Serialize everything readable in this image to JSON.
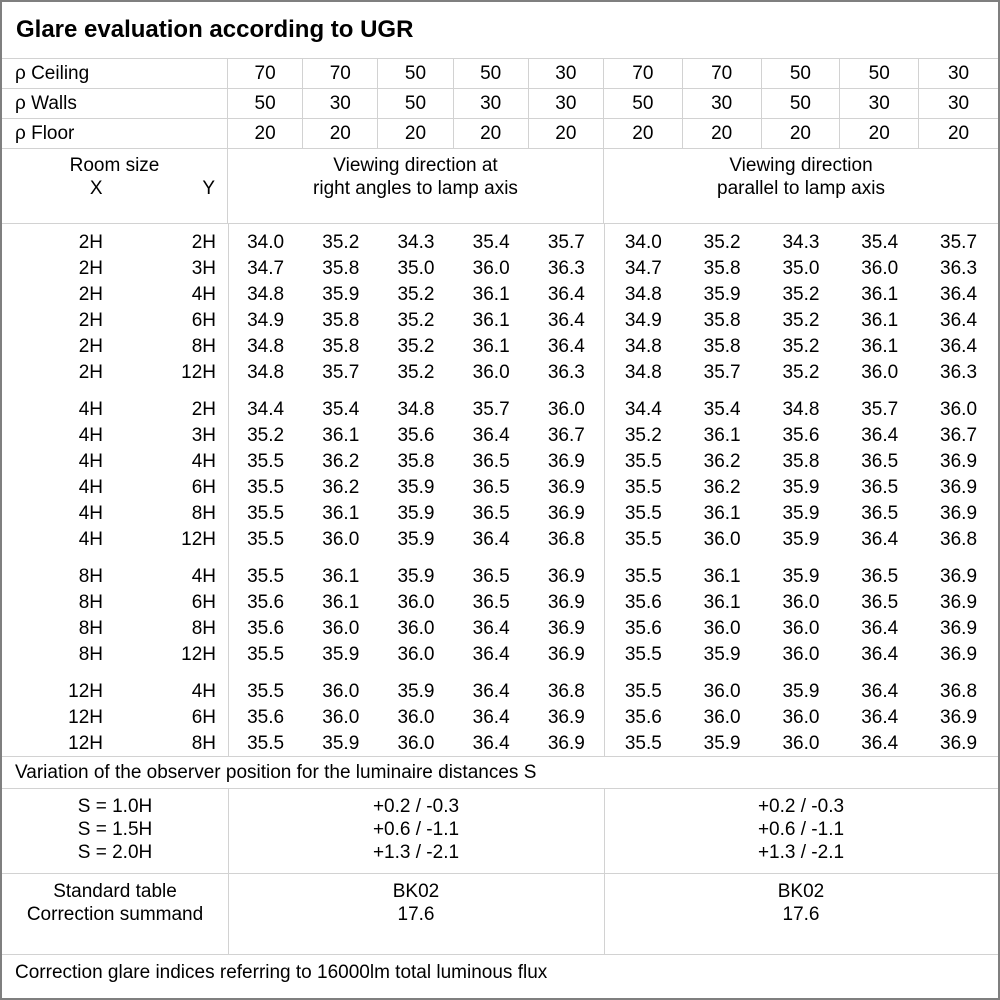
{
  "title": "Glare evaluation according to UGR",
  "reflectances": {
    "rows": [
      {
        "label": "ρ Ceiling",
        "values": [
          "70",
          "70",
          "50",
          "50",
          "30",
          "70",
          "70",
          "50",
          "50",
          "30"
        ]
      },
      {
        "label": "ρ Walls",
        "values": [
          "50",
          "30",
          "50",
          "30",
          "30",
          "50",
          "30",
          "50",
          "30",
          "30"
        ]
      },
      {
        "label": "ρ Floor",
        "values": [
          "20",
          "20",
          "20",
          "20",
          "20",
          "20",
          "20",
          "20",
          "20",
          "20"
        ]
      }
    ]
  },
  "header": {
    "room_size": "Room size",
    "x": "X",
    "y": "Y",
    "group1_line1": "Viewing direction at",
    "group1_line2": "right angles to lamp axis",
    "group2_line1": "Viewing direction",
    "group2_line2": "parallel to lamp axis"
  },
  "ugr_blocks": [
    {
      "rows": [
        {
          "x": "2H",
          "y": "2H",
          "right_angles": [
            "34.0",
            "35.2",
            "34.3",
            "35.4",
            "35.7"
          ],
          "parallel": [
            "34.0",
            "35.2",
            "34.3",
            "35.4",
            "35.7"
          ]
        },
        {
          "x": "2H",
          "y": "3H",
          "right_angles": [
            "34.7",
            "35.8",
            "35.0",
            "36.0",
            "36.3"
          ],
          "parallel": [
            "34.7",
            "35.8",
            "35.0",
            "36.0",
            "36.3"
          ]
        },
        {
          "x": "2H",
          "y": "4H",
          "right_angles": [
            "34.8",
            "35.9",
            "35.2",
            "36.1",
            "36.4"
          ],
          "parallel": [
            "34.8",
            "35.9",
            "35.2",
            "36.1",
            "36.4"
          ]
        },
        {
          "x": "2H",
          "y": "6H",
          "right_angles": [
            "34.9",
            "35.8",
            "35.2",
            "36.1",
            "36.4"
          ],
          "parallel": [
            "34.9",
            "35.8",
            "35.2",
            "36.1",
            "36.4"
          ]
        },
        {
          "x": "2H",
          "y": "8H",
          "right_angles": [
            "34.8",
            "35.8",
            "35.2",
            "36.1",
            "36.4"
          ],
          "parallel": [
            "34.8",
            "35.8",
            "35.2",
            "36.1",
            "36.4"
          ]
        },
        {
          "x": "2H",
          "y": "12H",
          "right_angles": [
            "34.8",
            "35.7",
            "35.2",
            "36.0",
            "36.3"
          ],
          "parallel": [
            "34.8",
            "35.7",
            "35.2",
            "36.0",
            "36.3"
          ]
        }
      ]
    },
    {
      "rows": [
        {
          "x": "4H",
          "y": "2H",
          "right_angles": [
            "34.4",
            "35.4",
            "34.8",
            "35.7",
            "36.0"
          ],
          "parallel": [
            "34.4",
            "35.4",
            "34.8",
            "35.7",
            "36.0"
          ]
        },
        {
          "x": "4H",
          "y": "3H",
          "right_angles": [
            "35.2",
            "36.1",
            "35.6",
            "36.4",
            "36.7"
          ],
          "parallel": [
            "35.2",
            "36.1",
            "35.6",
            "36.4",
            "36.7"
          ]
        },
        {
          "x": "4H",
          "y": "4H",
          "right_angles": [
            "35.5",
            "36.2",
            "35.8",
            "36.5",
            "36.9"
          ],
          "parallel": [
            "35.5",
            "36.2",
            "35.8",
            "36.5",
            "36.9"
          ]
        },
        {
          "x": "4H",
          "y": "6H",
          "right_angles": [
            "35.5",
            "36.2",
            "35.9",
            "36.5",
            "36.9"
          ],
          "parallel": [
            "35.5",
            "36.2",
            "35.9",
            "36.5",
            "36.9"
          ]
        },
        {
          "x": "4H",
          "y": "8H",
          "right_angles": [
            "35.5",
            "36.1",
            "35.9",
            "36.5",
            "36.9"
          ],
          "parallel": [
            "35.5",
            "36.1",
            "35.9",
            "36.5",
            "36.9"
          ]
        },
        {
          "x": "4H",
          "y": "12H",
          "right_angles": [
            "35.5",
            "36.0",
            "35.9",
            "36.4",
            "36.8"
          ],
          "parallel": [
            "35.5",
            "36.0",
            "35.9",
            "36.4",
            "36.8"
          ]
        }
      ]
    },
    {
      "rows": [
        {
          "x": "8H",
          "y": "4H",
          "right_angles": [
            "35.5",
            "36.1",
            "35.9",
            "36.5",
            "36.9"
          ],
          "parallel": [
            "35.5",
            "36.1",
            "35.9",
            "36.5",
            "36.9"
          ]
        },
        {
          "x": "8H",
          "y": "6H",
          "right_angles": [
            "35.6",
            "36.1",
            "36.0",
            "36.5",
            "36.9"
          ],
          "parallel": [
            "35.6",
            "36.1",
            "36.0",
            "36.5",
            "36.9"
          ]
        },
        {
          "x": "8H",
          "y": "8H",
          "right_angles": [
            "35.6",
            "36.0",
            "36.0",
            "36.4",
            "36.9"
          ],
          "parallel": [
            "35.6",
            "36.0",
            "36.0",
            "36.4",
            "36.9"
          ]
        },
        {
          "x": "8H",
          "y": "12H",
          "right_angles": [
            "35.5",
            "35.9",
            "36.0",
            "36.4",
            "36.9"
          ],
          "parallel": [
            "35.5",
            "35.9",
            "36.0",
            "36.4",
            "36.9"
          ]
        }
      ]
    },
    {
      "rows": [
        {
          "x": "12H",
          "y": "4H",
          "right_angles": [
            "35.5",
            "36.0",
            "35.9",
            "36.4",
            "36.8"
          ],
          "parallel": [
            "35.5",
            "36.0",
            "35.9",
            "36.4",
            "36.8"
          ]
        },
        {
          "x": "12H",
          "y": "6H",
          "right_angles": [
            "35.6",
            "36.0",
            "36.0",
            "36.4",
            "36.9"
          ],
          "parallel": [
            "35.6",
            "36.0",
            "36.0",
            "36.4",
            "36.9"
          ]
        },
        {
          "x": "12H",
          "y": "8H",
          "right_angles": [
            "35.5",
            "35.9",
            "36.0",
            "36.4",
            "36.9"
          ],
          "parallel": [
            "35.5",
            "35.9",
            "36.0",
            "36.4",
            "36.9"
          ]
        }
      ]
    }
  ],
  "variation": {
    "caption": "Variation of the observer position for the luminaire distances S",
    "rows": [
      {
        "label": "S = 1.0H",
        "right_angles": "+0.2 / -0.3",
        "parallel": "+0.2 / -0.3"
      },
      {
        "label": "S = 1.5H",
        "right_angles": "+0.6 / -1.1",
        "parallel": "+0.6 / -1.1"
      },
      {
        "label": "S = 2.0H",
        "right_angles": "+1.3 / -2.1",
        "parallel": "+1.3 / -2.1"
      }
    ]
  },
  "summary": {
    "rows": [
      {
        "label": "Standard table",
        "right_angles": "BK02",
        "parallel": "BK02"
      },
      {
        "label": "Correction summand",
        "right_angles": "17.6",
        "parallel": "17.6"
      }
    ]
  },
  "footer": "Correction glare indices referring to 16000lm total luminous flux",
  "colors": {
    "background": "#ffffff",
    "text": "#000000",
    "grid_line": "#d2d2d2",
    "outer_border": "#7f7f7f"
  }
}
